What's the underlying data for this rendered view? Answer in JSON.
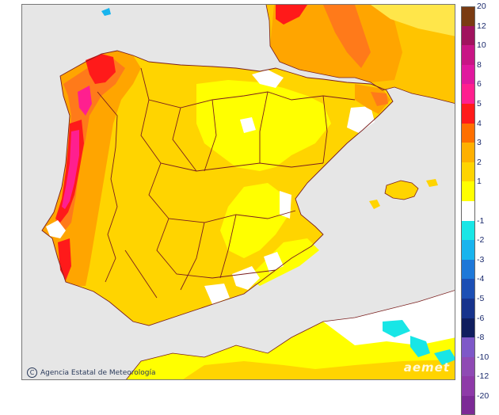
{
  "credit": {
    "text": "Agencia Estatal de Meteorología",
    "icon": "copyright-icon"
  },
  "watermark": {
    "text": "aemet"
  },
  "colors": {
    "sea": "#e6e6e6",
    "land_white": "#ffffff",
    "border": "#7a1e1e"
  },
  "legend": [
    {
      "label": "20",
      "color": "#7a3b12"
    },
    {
      "label": "12",
      "color": "#a0135e"
    },
    {
      "label": "10",
      "color": "#c81585"
    },
    {
      "label": "8",
      "color": "#e0189e"
    },
    {
      "label": "6",
      "color": "#ff1f8f"
    },
    {
      "label": "5",
      "color": "#ff1a1a"
    },
    {
      "label": "4",
      "color": "#ff6f00"
    },
    {
      "label": "3",
      "color": "#ffb000"
    },
    {
      "label": "2",
      "color": "#ffd400"
    },
    {
      "label": "1",
      "color": "#ffff00"
    },
    {
      "label": "",
      "color": "#ffffff"
    },
    {
      "label": "-1",
      "color": "#18e6e6"
    },
    {
      "label": "-2",
      "color": "#18b4ee"
    },
    {
      "label": "-3",
      "color": "#1e78d8"
    },
    {
      "label": "-4",
      "color": "#1c4fb4"
    },
    {
      "label": "-5",
      "color": "#17338c"
    },
    {
      "label": "-6",
      "color": "#101e5e"
    },
    {
      "label": "-8",
      "color": "#7e58c8"
    },
    {
      "label": "-10",
      "color": "#8f4ab4"
    },
    {
      "label": "-12",
      "color": "#8e3aa8"
    },
    {
      "label": "-20",
      "color": "#7c2a96"
    }
  ]
}
